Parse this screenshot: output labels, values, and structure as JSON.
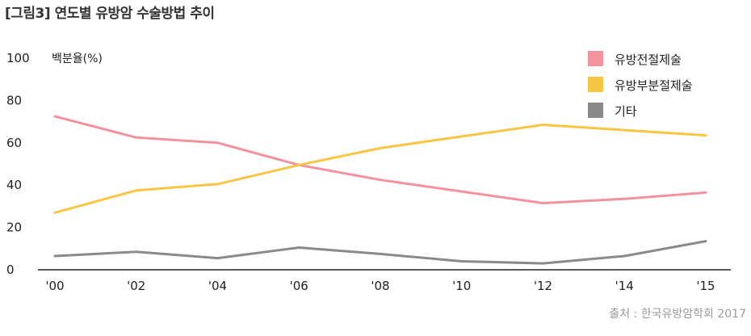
{
  "title": "[그림3] 연도별 유방암 수술방법 추이",
  "source": "출처 : 한국유방암학회 2017",
  "chart_data": {
    "type": "line",
    "ylabel": "백분율(%)",
    "xlabel": "",
    "x": [
      "'00",
      "'02",
      "'04",
      "'06",
      "'08",
      "'10",
      "'12",
      "'14",
      "'15"
    ],
    "ylim": [
      0,
      100
    ],
    "yticks": [
      0,
      20,
      40,
      60,
      80,
      100
    ],
    "grid": false,
    "legend_position": "top-right",
    "series": [
      {
        "name": "유방전절제술",
        "color": "#f2929f",
        "values": [
          72.5,
          62.5,
          60,
          49.5,
          42.5,
          37,
          31.5,
          33.5,
          36.5
        ]
      },
      {
        "name": "유방부분절제술",
        "color": "#f7c644",
        "values": [
          27,
          37.5,
          40.5,
          49.5,
          57.5,
          63,
          68.5,
          66,
          63.5
        ]
      },
      {
        "name": "기타",
        "color": "#8a8a8a",
        "values": [
          6.5,
          8.5,
          5.5,
          10.5,
          7.5,
          4,
          3,
          6.5,
          13.5
        ]
      }
    ]
  }
}
